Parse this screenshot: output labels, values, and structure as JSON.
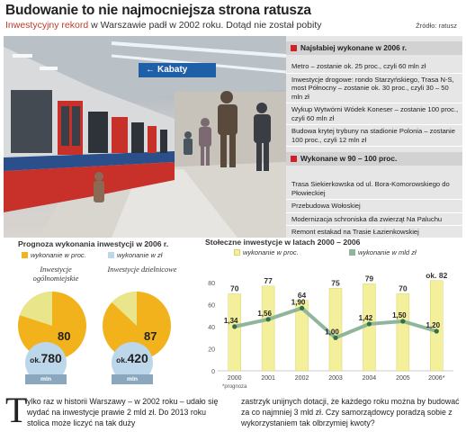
{
  "header": {
    "title": "Budowanie to nie najmocniejsza strona ratusza",
    "subtitle_highlight": "Inwestycyjny rekord",
    "subtitle_rest": " w Warszawie padł w 2002 roku. Dotąd nie został pobity",
    "source": "Źródło: ratusz"
  },
  "photo": {
    "sign_text": "Kabaty",
    "sign_icon": "arrow-left-icon"
  },
  "panel": {
    "weakest_heading": "Najsłabiej wykonane w 2006 r.",
    "weakest_items": [
      "Metro – zostanie ok. 25 proc., czyli 60 mln zł",
      "Inwestycje drogowe: rondo Starzyńskiego, Trasa N-S, most Północny – zostanie ok. 30 proc., czyli 30 – 50 mln zł",
      "Wykup Wytwórni Wódek Koneser – zostanie 100 proc., czyli 60 mln zł",
      "Budowa krytej trybuny na stadionie Polonia – zostanie 100 proc., czyli 12 mln zł"
    ],
    "done_heading": "Wykonane w 90 – 100 proc.",
    "done_items": [
      "Trasa Siekierkowska od ul. Bora-Komorowskiego do Płowieckiej",
      "Przebudowa Wołoskiej",
      "Modernizacja schroniska dla zwierząt Na Paluchu",
      "Remont estakad na Trasie Łazienkowskiej"
    ],
    "accent_color": "#d0202a"
  },
  "chart_data": [
    {
      "type": "pie",
      "title": "Prognoza wykonania inwestycji w 2006 r.",
      "legend": [
        "wykonanie w proc.",
        "wykonanie w zł"
      ],
      "colors": {
        "done": "#f2b21b",
        "rest": "#e9e58a",
        "amount": "#bcd6ea"
      },
      "pies": [
        {
          "label": "Inwestycje ogólnomiejskie",
          "percent": 80,
          "amount_prefix": "ok.",
          "amount": "780",
          "unit": "mln"
        },
        {
          "label": "Inwestycje dzielnicowe",
          "percent": 87,
          "amount_prefix": "ok.",
          "amount": "420",
          "unit": "mln"
        }
      ]
    },
    {
      "type": "bar",
      "title": "Stołeczne inwestycje w latach 2000 – 2006",
      "legend": [
        "wykonanie w proc.",
        "wykonanie w mld zł"
      ],
      "categories": [
        "2000",
        "2001",
        "2002",
        "2003",
        "2004",
        "2005",
        "2006*"
      ],
      "series": [
        {
          "name": "wykonanie w proc.",
          "type": "bar",
          "values": [
            70,
            77,
            64,
            75,
            79,
            70,
            82
          ],
          "labels": [
            "70",
            "77",
            "64",
            "75",
            "79",
            "70",
            "ok. 82"
          ]
        },
        {
          "name": "wykonanie w mld zł",
          "type": "line",
          "values": [
            1.34,
            1.56,
            1.9,
            1.0,
            1.42,
            1.5,
            1.2
          ],
          "labels": [
            "1,34",
            "1,56",
            "1,90",
            "1,00",
            "1,42",
            "1,50",
            "1,20"
          ]
        }
      ],
      "yticks": [
        "0",
        "20",
        "40",
        "60",
        "80"
      ],
      "ylim": [
        0,
        90
      ],
      "footnote": "*prognoza",
      "colors": {
        "bar": "#f3ef9a",
        "bar_edge": "#d9d470",
        "line": "#8fb59a",
        "marker": "#2f6f4a",
        "label_bg": "#ffffff"
      }
    }
  ],
  "body": {
    "dropcap": "T",
    "left": "ylko raz w historii Warszawy – w 2002 roku – udało się wydać na inwestycje prawie 2 mld zł. Do 2013 roku stolica może liczyć na tak duży",
    "right": "zastrzyk unijnych dotacji, że każdego roku można by budować za co najmniej 3 mld zł. Czy samorządowcy poradzą sobie z wykorzystaniem tak olbrzymiej kwoty?"
  }
}
